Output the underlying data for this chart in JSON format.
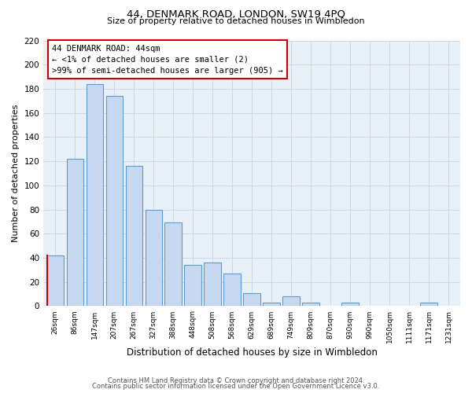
{
  "title": "44, DENMARK ROAD, LONDON, SW19 4PQ",
  "subtitle": "Size of property relative to detached houses in Wimbledon",
  "xlabel": "Distribution of detached houses by size in Wimbledon",
  "ylabel": "Number of detached properties",
  "bar_labels": [
    "26sqm",
    "86sqm",
    "147sqm",
    "207sqm",
    "267sqm",
    "327sqm",
    "388sqm",
    "448sqm",
    "508sqm",
    "568sqm",
    "629sqm",
    "689sqm",
    "749sqm",
    "809sqm",
    "870sqm",
    "930sqm",
    "990sqm",
    "1050sqm",
    "1111sqm",
    "1171sqm",
    "1231sqm"
  ],
  "bar_values": [
    42,
    122,
    184,
    174,
    116,
    80,
    69,
    34,
    36,
    27,
    11,
    3,
    8,
    3,
    0,
    3,
    0,
    0,
    0,
    3,
    0
  ],
  "bar_color": "#c6d9f0",
  "bar_edge_color": "#5b9bd5",
  "highlight_bar_index": 0,
  "highlight_edge_color": "#cc0000",
  "ylim": [
    0,
    220
  ],
  "yticks": [
    0,
    20,
    40,
    60,
    80,
    100,
    120,
    140,
    160,
    180,
    200,
    220
  ],
  "annotation_title": "44 DENMARK ROAD: 44sqm",
  "annotation_line1": "← <1% of detached houses are smaller (2)",
  "annotation_line2": ">99% of semi-detached houses are larger (905) →",
  "annotation_box_edge": "#cc0000",
  "footer_line1": "Contains HM Land Registry data © Crown copyright and database right 2024.",
  "footer_line2": "Contains public sector information licensed under the Open Government Licence v3.0.",
  "grid_color": "#ccd9e8",
  "background_color": "#e8f0f8"
}
